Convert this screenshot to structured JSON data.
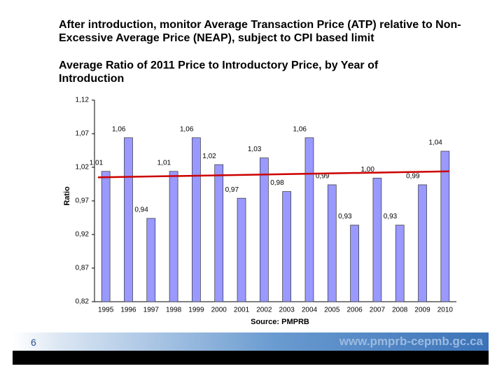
{
  "title": "After introduction, monitor Average Transaction Price (ATP) relative to Non-Excessive Average Price (NEAP), subject to CPI based limit",
  "chart_data": {
    "type": "bar",
    "title": "Average Ratio of 2011 Price to Introductory Price, by Year of Introduction",
    "y_label": "Ratio",
    "source": "Source: PMPRB",
    "categories": [
      "1995",
      "1996",
      "1997",
      "1998",
      "1999",
      "2000",
      "2001",
      "2002",
      "2003",
      "2004",
      "2005",
      "2006",
      "2007",
      "2008",
      "2009",
      "2010"
    ],
    "values": [
      1.014,
      1.064,
      0.944,
      1.014,
      1.064,
      1.024,
      0.974,
      1.034,
      0.984,
      1.064,
      0.994,
      0.934,
      1.004,
      0.934,
      0.994,
      1.044
    ],
    "value_labels": [
      "1,01",
      "1,06",
      "0,94",
      "1,01",
      "1,06",
      "1,02",
      "0,97",
      "1,03",
      "0,98",
      "1,06",
      "0,99",
      "0,93",
      "1,00",
      "0,93",
      "0,99",
      "1,04"
    ],
    "color": "#9999ff",
    "trend_line": {
      "color": "#cc0000",
      "values": [
        1.005,
        1.014
      ]
    },
    "ylim": [
      0.82,
      1.12
    ],
    "yticks": [
      {
        "value": 0.82,
        "label": "0,82"
      },
      {
        "value": 0.87,
        "label": "0,87"
      },
      {
        "value": 0.92,
        "label": "0,92"
      },
      {
        "value": 0.97,
        "label": "0,97"
      },
      {
        "value": 1.02,
        "label": "1,02"
      },
      {
        "value": 1.07,
        "label": "1,07"
      },
      {
        "value": 1.12,
        "label": "1,12"
      }
    ]
  },
  "footer": {
    "page": "6",
    "url": "www.pmprb-cepmb.gc.ca"
  }
}
